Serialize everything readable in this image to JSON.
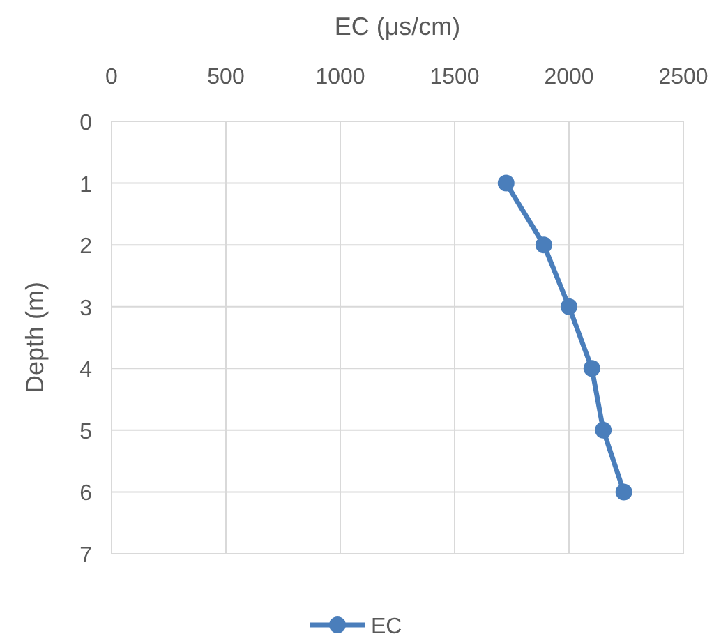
{
  "chart_data": {
    "type": "line",
    "xlabel": "EC (μs/cm)",
    "ylabel": "Depth (m)",
    "xlim": [
      0,
      2500
    ],
    "xticks": [
      0,
      500,
      1000,
      1500,
      2000,
      2500
    ],
    "ylim": [
      7,
      0
    ],
    "yticks": [
      0,
      1,
      2,
      3,
      4,
      5,
      6,
      7
    ],
    "series": [
      {
        "name": "EC",
        "color": "#4a7ebb",
        "x": [
          1725,
          1890,
          2000,
          2100,
          2150,
          2240
        ],
        "values": [
          1,
          2,
          3,
          4,
          5,
          6
        ]
      }
    ],
    "grid": true,
    "legend": "bottom",
    "marker": "circle",
    "line_style": "solid"
  }
}
